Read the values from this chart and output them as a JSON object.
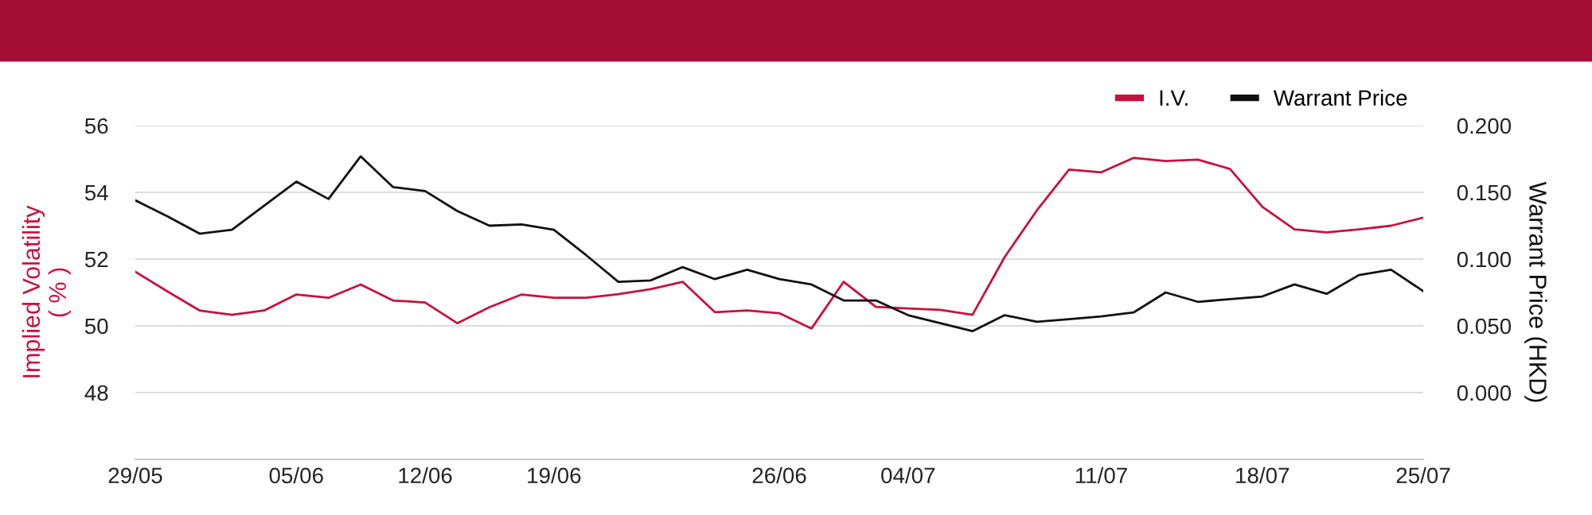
{
  "chart_data": {
    "type": "line",
    "categories": [
      "29/05",
      null,
      null,
      null,
      null,
      "05/06",
      null,
      null,
      null,
      "12/06",
      null,
      null,
      null,
      "19/06",
      null,
      null,
      null,
      null,
      null,
      null,
      "26/06",
      null,
      null,
      null,
      "04/07",
      null,
      null,
      null,
      null,
      null,
      "11/07",
      null,
      null,
      null,
      null,
      "18/07",
      null,
      null,
      null,
      null,
      "25/07"
    ],
    "series": [
      {
        "name": "I.V.",
        "color": "#c8103e",
        "values": [
          51.62,
          51.03,
          50.46,
          50.33,
          50.46,
          50.94,
          50.84,
          51.24,
          50.76,
          50.7,
          50.08,
          50.56,
          50.94,
          50.84,
          50.84,
          50.95,
          51.1,
          51.32,
          50.41,
          50.46,
          50.38,
          49.92,
          51.32,
          50.57,
          50.52,
          50.48,
          50.33,
          52.06,
          53.46,
          54.68,
          54.6,
          55.03,
          54.94,
          54.98,
          54.7,
          53.57,
          52.89,
          52.8,
          52.89,
          53.0,
          53.24
        ]
      },
      {
        "name": "Warrant Price",
        "color": "#111111",
        "axis": "y2",
        "values": [
          0.144,
          0.132,
          0.119,
          0.122,
          0.14,
          0.158,
          0.145,
          0.177,
          0.154,
          0.151,
          0.136,
          0.125,
          0.126,
          0.122,
          0.103,
          0.083,
          0.084,
          0.094,
          0.085,
          0.092,
          0.085,
          0.081,
          0.069,
          0.069,
          0.058,
          0.052,
          0.046,
          0.058,
          0.053,
          0.055,
          0.057,
          0.06,
          0.075,
          0.068,
          0.07,
          0.072,
          0.081,
          0.074,
          0.088,
          0.092,
          0.076
        ]
      }
    ],
    "ylabel": "Implied Volatility\n( % )",
    "y2label": "Warrant Price (HKD)",
    "ylim": [
      46,
      56
    ],
    "yticks": [
      48,
      50,
      52,
      54,
      56
    ],
    "y2lim": [
      -0.05,
      0.2
    ],
    "y2ticks": [
      {
        "value": 0,
        "label": "0.000"
      },
      {
        "value": 0.05,
        "label": "0.050"
      },
      {
        "value": 0.1,
        "label": "0.100"
      },
      {
        "value": 0.15,
        "label": "0.150"
      },
      {
        "value": 0.2,
        "label": "0.200"
      }
    ],
    "grid": "y",
    "legend": "top right",
    "marker": "none",
    "line_style": "solid"
  }
}
